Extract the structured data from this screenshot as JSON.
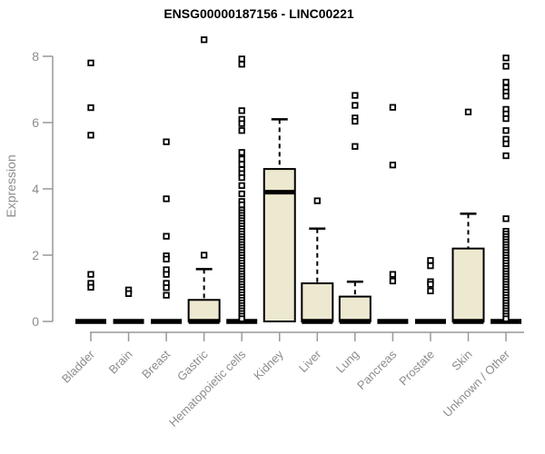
{
  "chart_data": {
    "type": "boxplot",
    "title": "ENSG00000187156 - LINC00221",
    "xlabel": "",
    "ylabel": "Expression",
    "yticks": [
      0,
      2,
      4,
      6,
      8
    ],
    "ylim": [
      0,
      8.6
    ],
    "grid": false,
    "legend": null,
    "categories": [
      "Bladder",
      "Brain",
      "Breast",
      "Gastric",
      "Hematopoietic cells",
      "Kidney",
      "Liver",
      "Lung",
      "Pancreas",
      "Prostate",
      "Skin",
      "Unknown / Other"
    ],
    "series": [
      {
        "name": "Bladder",
        "q1": 0,
        "median": 0,
        "q3": 0,
        "whisker_low": 0,
        "whisker_high": 0,
        "outliers": [
          7.8,
          6.45,
          5.62,
          1.42,
          1.15,
          1.03
        ]
      },
      {
        "name": "Brain",
        "q1": 0,
        "median": 0,
        "q3": 0,
        "whisker_low": 0,
        "whisker_high": 0,
        "outliers": [
          0.95,
          0.84
        ]
      },
      {
        "name": "Breast",
        "q1": 0,
        "median": 0,
        "q3": 0,
        "whisker_low": 0,
        "whisker_high": 0,
        "outliers": [
          5.42,
          3.7,
          2.57,
          1.98,
          1.88,
          1.56,
          1.42,
          1.15,
          1.02,
          0.79
        ]
      },
      {
        "name": "Gastric",
        "q1": 0,
        "median": 0,
        "q3": 0.65,
        "whisker_low": 0,
        "whisker_high": 1.58,
        "outliers": [
          8.5,
          2.0
        ]
      },
      {
        "name": "Hematopoietic cells",
        "q1": 0,
        "median": 0,
        "q3": 0,
        "whisker_low": 0,
        "whisker_high": 0,
        "outliers": [
          7.92,
          7.76,
          6.36,
          6.1,
          5.97,
          5.76,
          5.1,
          4.9,
          4.74,
          4.58,
          4.46,
          4.34,
          4.1,
          3.85,
          3.62,
          3.52,
          3.36,
          3.28,
          3.2,
          3.12,
          3.04,
          2.96,
          2.88,
          2.8,
          2.72,
          2.64,
          2.56,
          2.48,
          2.4,
          2.32,
          2.24,
          2.16,
          2.08,
          2.0,
          1.92,
          1.84,
          1.76,
          1.68,
          1.6,
          1.52,
          1.44,
          1.36,
          1.28,
          1.2,
          1.12,
          1.04,
          0.96,
          0.88,
          0.8,
          0.72,
          0.64,
          0.56,
          0.48,
          0.4,
          0.32,
          0.24,
          0.16,
          0.08
        ]
      },
      {
        "name": "Kidney",
        "q1": 0,
        "median": 3.9,
        "q3": 4.6,
        "whisker_low": 0,
        "whisker_high": 6.1,
        "outliers": []
      },
      {
        "name": "Liver",
        "q1": 0,
        "median": 0,
        "q3": 1.15,
        "whisker_low": 0,
        "whisker_high": 2.8,
        "outliers": [
          3.64
        ]
      },
      {
        "name": "Lung",
        "q1": 0,
        "median": 0,
        "q3": 0.75,
        "whisker_low": 0,
        "whisker_high": 1.2,
        "outliers": [
          6.82,
          6.52,
          6.14,
          6.04,
          5.28
        ]
      },
      {
        "name": "Pancreas",
        "q1": 0,
        "median": 0,
        "q3": 0,
        "whisker_low": 0,
        "whisker_high": 0,
        "outliers": [
          6.46,
          4.72,
          1.42,
          1.22
        ]
      },
      {
        "name": "Prostate",
        "q1": 0,
        "median": 0,
        "q3": 0,
        "whisker_low": 0,
        "whisker_high": 0,
        "outliers": [
          1.84,
          1.68,
          1.2,
          1.12,
          0.92
        ]
      },
      {
        "name": "Skin",
        "q1": 0,
        "median": 0,
        "q3": 2.2,
        "whisker_low": 0,
        "whisker_high": 3.25,
        "outliers": [
          6.32
        ]
      },
      {
        "name": "Unknown / Other",
        "q1": 0,
        "median": 0,
        "q3": 0,
        "whisker_low": 0,
        "whisker_high": 0,
        "outliers": [
          7.95,
          7.7,
          7.22,
          7.05,
          6.92,
          6.8,
          6.4,
          6.26,
          6.12,
          5.76,
          5.5,
          5.36,
          5.0,
          3.1,
          2.72,
          2.64,
          2.56,
          2.48,
          2.4,
          2.32,
          2.24,
          2.16,
          2.08,
          2.0,
          1.92,
          1.84,
          1.76,
          1.68,
          1.6,
          1.52,
          1.44,
          1.36,
          1.28,
          1.2,
          1.12,
          1.04,
          0.96,
          0.88,
          0.8,
          0.72,
          0.64,
          0.56,
          0.48,
          0.4,
          0.32,
          0.24,
          0.16,
          0.08
        ]
      }
    ],
    "colors": {
      "box_fill": "#ede8d0",
      "box_stroke": "#000000",
      "median": "#000000",
      "whisker": "#000000",
      "outlier_stroke": "#000000",
      "outlier_fill": "#ffffff",
      "axis": "#999999",
      "tick_label": "#8c8c8c",
      "title": "#000000"
    }
  }
}
